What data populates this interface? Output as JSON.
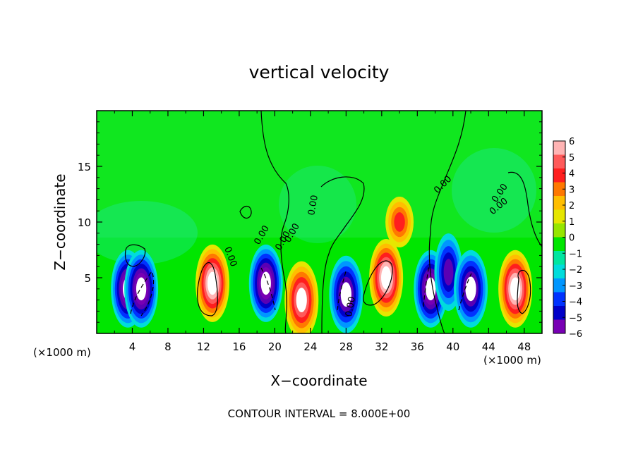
{
  "chart_data": {
    "type": "heatmap",
    "title": "vertical velocity",
    "xlabel": "X−coordinate",
    "ylabel": "Z−coordinate",
    "x_unit_left": "(×1000 m)",
    "x_unit_right": "(×1000 m)",
    "footer": "CONTOUR INTERVAL = 8.000E+00",
    "xlim": [
      0,
      50
    ],
    "ylim": [
      0,
      20
    ],
    "x_ticks": [
      4,
      8,
      12,
      16,
      20,
      24,
      28,
      32,
      36,
      40,
      44,
      48
    ],
    "x_tick_labels": [
      "4",
      "8",
      "12",
      "16",
      "20",
      "24",
      "28",
      "32",
      "36",
      "40",
      "44",
      "48"
    ],
    "y_ticks": [
      5,
      10,
      15
    ],
    "y_tick_labels": [
      "5",
      "10",
      "15"
    ],
    "colorbar": {
      "min": -6,
      "max": 6,
      "labels": [
        "6",
        "5",
        "4",
        "3",
        "2",
        "1",
        "0",
        "−1",
        "−2",
        "−3",
        "−4",
        "−5",
        "−6"
      ],
      "colors": [
        "#ffb4b4",
        "#ff5a5a",
        "#ff1e1e",
        "#ff7800",
        "#ffbe00",
        "#e6e600",
        "#96e600",
        "#00e600",
        "#00e6a0",
        "#00dcdc",
        "#0096ff",
        "#0032ff",
        "#0000c8",
        "#7800b4"
      ]
    },
    "contour_labels": [
      "0.00",
      "0.00",
      "0.00",
      "0.00",
      "0.00",
      "0.00",
      "0.00",
      "0.00",
      "0.00"
    ],
    "grid": false,
    "legend": "right colorbar",
    "cells": [
      {
        "x": 3.5,
        "z": 4.0,
        "v": -8
      },
      {
        "x": 5.0,
        "z": 4.0,
        "v": -8
      },
      {
        "x": 13.0,
        "z": 4.5,
        "v": 8
      },
      {
        "x": 19.0,
        "z": 4.5,
        "v": -8
      },
      {
        "x": 23.0,
        "z": 3.0,
        "v": 7
      },
      {
        "x": 28.0,
        "z": 3.5,
        "v": -7
      },
      {
        "x": 32.5,
        "z": 5.0,
        "v": 8
      },
      {
        "x": 34.0,
        "z": 10.0,
        "v": 4
      },
      {
        "x": 37.5,
        "z": 4.0,
        "v": -8
      },
      {
        "x": 39.5,
        "z": 5.5,
        "v": -6
      },
      {
        "x": 42.0,
        "z": 4.0,
        "v": -7
      },
      {
        "x": 47.0,
        "z": 4.0,
        "v": 8
      }
    ]
  }
}
